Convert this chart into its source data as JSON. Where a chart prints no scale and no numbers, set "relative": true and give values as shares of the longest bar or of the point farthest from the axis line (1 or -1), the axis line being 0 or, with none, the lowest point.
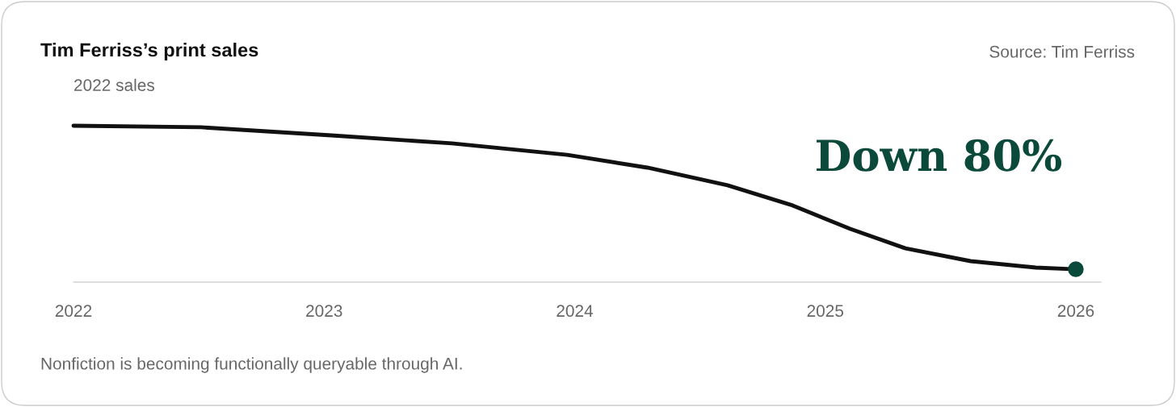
{
  "chart_data": {
    "type": "line",
    "title": "Tim Ferriss’s print sales",
    "relative": true,
    "x": [
      2022,
      2022.51,
      2023.03,
      2023.51,
      2023.97,
      2024.29,
      2024.61,
      2024.87,
      2025.1,
      2025.32,
      2025.58,
      2025.84,
      2026
    ],
    "xlim": [
      2022,
      2026.1
    ],
    "xticks": [
      2022,
      2023,
      2024,
      2025,
      2026
    ],
    "series": [
      {
        "color": "#111111",
        "values": [
          1.0,
          0.99,
          0.938,
          0.887,
          0.814,
          0.732,
          0.619,
          0.49,
          0.34,
          0.216,
          0.134,
          0.093,
          0.082
        ]
      },
      {
        "type": "scatter",
        "color": "#0b4a3a",
        "x": [
          2026
        ],
        "values": [
          0.082
        ]
      }
    ],
    "annotations": [
      {
        "text": "2022 sales",
        "x": 2022,
        "y": 1.0
      },
      {
        "text": "Down 80%",
        "x": 2026,
        "y": 0.082
      },
      "Source: Tim Ferriss",
      "Nonfiction is becoming functionally queryable through AI."
    ],
    "grid": false,
    "legend": false
  }
}
